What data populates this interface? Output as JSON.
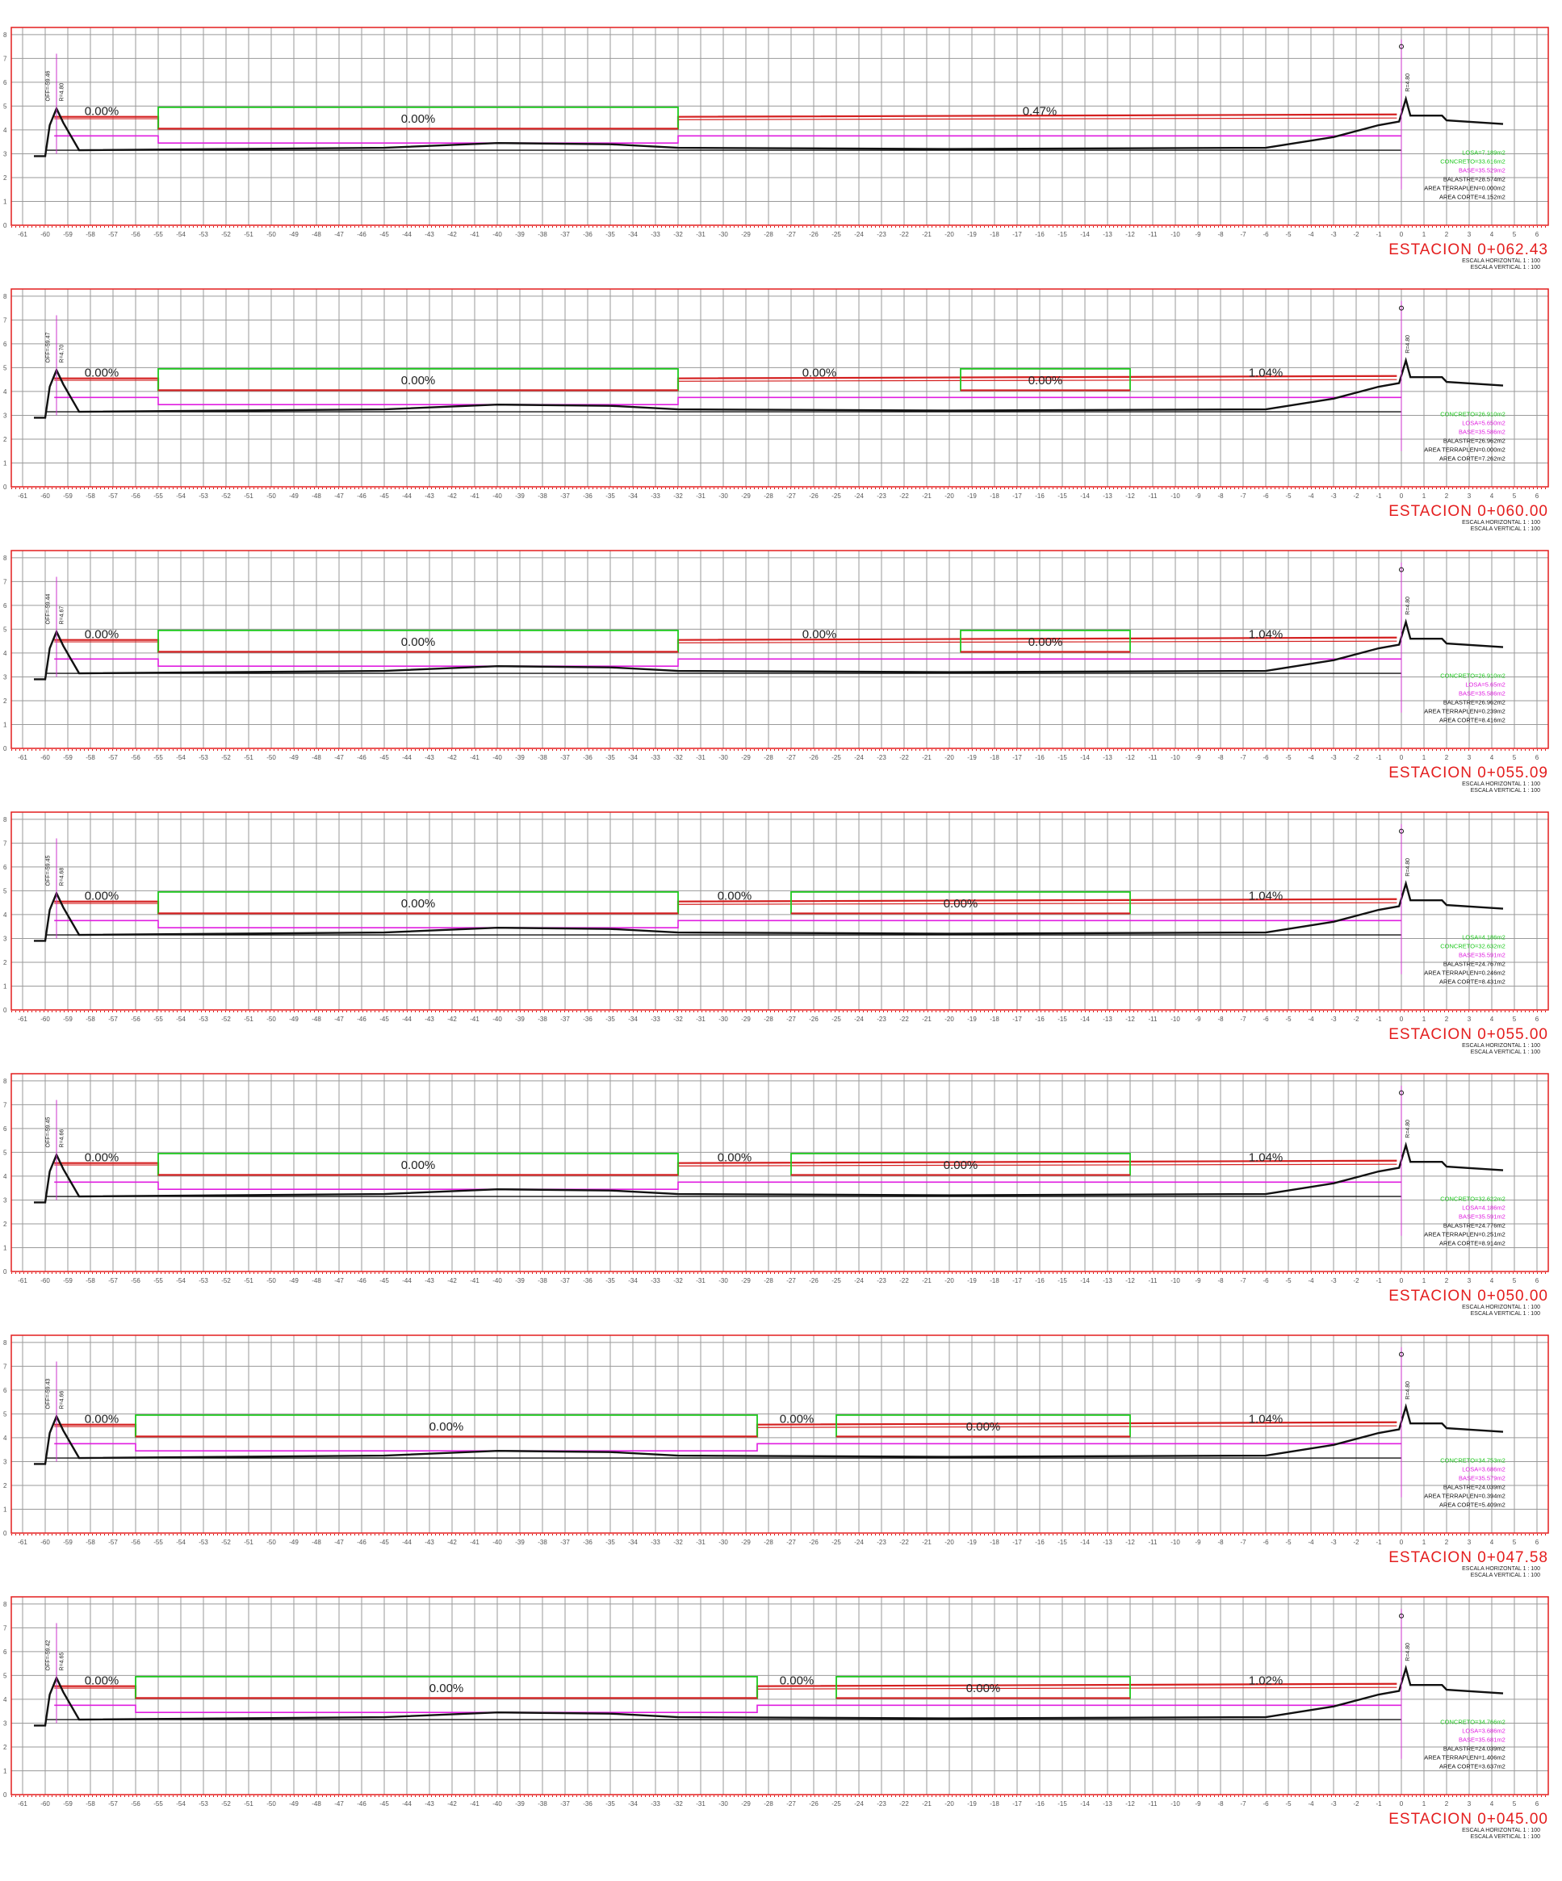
{
  "colors": {
    "frame": "#e41e1e",
    "grid": "#9a9a9a",
    "concrete": "#1ec81e",
    "slab": "#d42020",
    "base": "#e01ee0",
    "terrain": "#111111",
    "axis": "#cc33cc"
  },
  "y_ticks": [
    "0",
    "1",
    "2",
    "3",
    "4",
    "5",
    "6",
    "7",
    "8"
  ],
  "x_ticks": [
    "-61",
    "-60",
    "-59",
    "-58",
    "-57",
    "-56",
    "-55",
    "-54",
    "-53",
    "-52",
    "-51",
    "-50",
    "-49",
    "-48",
    "-47",
    "-46",
    "-45",
    "-44",
    "-43",
    "-42",
    "-41",
    "-40",
    "-39",
    "-38",
    "-37",
    "-36",
    "-35",
    "-34",
    "-33",
    "-32",
    "-31",
    "-30",
    "-29",
    "-28",
    "-27",
    "-26",
    "-25",
    "-24",
    "-23",
    "-22",
    "-21",
    "-20",
    "-19",
    "-18",
    "-17",
    "-16",
    "-15",
    "-14",
    "-13",
    "-12",
    "-11",
    "-10",
    "-9",
    "-8",
    "-7",
    "-6",
    "-5",
    "-4",
    "-3",
    "-2",
    "-1",
    "0",
    "1",
    "2",
    "3",
    "4",
    "5",
    "6"
  ],
  "scale_h": "ESCALA HORIZONTAL 1 : 100",
  "scale_v": "ESCALA VERTICAL 1 : 100",
  "sections": [
    {
      "station": "ESTACION  0+062.43",
      "off_label": "OFF=-59.46",
      "r_label": "R=4.80",
      "cl_label": "R=4.80",
      "slopes": [
        "0.00%",
        "0.00%",
        "0.47%"
      ],
      "panels": [
        [
          -55,
          -32
        ]
      ],
      "areas": [
        {
          "text": "LOSA=7.189m2",
          "color": "#1ec81e"
        },
        {
          "text": "CONCRETO=33.616m2",
          "color": "#1ec81e"
        },
        {
          "text": "BASE=35.529m2",
          "color": "#e01ee0"
        },
        {
          "text": "BALASTRE=28.574m2",
          "color": "#111111"
        },
        {
          "text": "AREA TERRAPLEN=0.000m2",
          "color": "#111111"
        },
        {
          "text": "AREA CORTE=4.152m2",
          "color": "#111111"
        }
      ]
    },
    {
      "station": "ESTACION  0+060.00",
      "off_label": "OFF=-59.47",
      "r_label": "R=4.70",
      "cl_label": "R=4.80",
      "slopes": [
        "0.00%",
        "0.00%",
        "0.00%",
        "0.00%",
        "1.04%"
      ],
      "panels": [
        [
          -55,
          -32
        ],
        [
          -19.5,
          -12
        ]
      ],
      "areas": [
        {
          "text": "CONCRETO=26.910m2",
          "color": "#1ec81e"
        },
        {
          "text": "LOSA=5.650m2",
          "color": "#e01ee0"
        },
        {
          "text": "BASE=35.586m2",
          "color": "#e01ee0"
        },
        {
          "text": "BALASTRE=26.962m2",
          "color": "#111111"
        },
        {
          "text": "AREA TERRAPLEN=0.000m2",
          "color": "#111111"
        },
        {
          "text": "AREA CORTE=7.262m2",
          "color": "#111111"
        }
      ]
    },
    {
      "station": "ESTACION  0+055.09",
      "off_label": "OFF=-59.44",
      "r_label": "R=4.67",
      "cl_label": "R=4.80",
      "slopes": [
        "0.00%",
        "0.00%",
        "0.00%",
        "0.00%",
        "1.04%"
      ],
      "panels": [
        [
          -55,
          -32
        ],
        [
          -19.5,
          -12
        ]
      ],
      "areas": [
        {
          "text": "CONCRETO=26.910m2",
          "color": "#1ec81e"
        },
        {
          "text": "LOSA=5.65m2",
          "color": "#e01ee0"
        },
        {
          "text": "BASE=35.586m2",
          "color": "#e01ee0"
        },
        {
          "text": "BALASTRE=26.962m2",
          "color": "#111111"
        },
        {
          "text": "AREA TERRAPLEN=0.239m2",
          "color": "#111111"
        },
        {
          "text": "AREA CORTE=8.416m2",
          "color": "#111111"
        }
      ]
    },
    {
      "station": "ESTACION  0+055.00",
      "off_label": "OFF=-59.45",
      "r_label": "R=4.68",
      "cl_label": "R=4.80",
      "slopes": [
        "0.00%",
        "0.00%",
        "0.00%",
        "0.00%",
        "1.04%"
      ],
      "panels": [
        [
          -55,
          -32
        ],
        [
          -27,
          -12
        ]
      ],
      "areas": [
        {
          "text": "LOSA=4.186m2",
          "color": "#1ec81e"
        },
        {
          "text": "CONCRETO=32.632m2",
          "color": "#1ec81e"
        },
        {
          "text": "BASE=35.591m2",
          "color": "#e01ee0"
        },
        {
          "text": "BALASTRE=24.767m2",
          "color": "#111111"
        },
        {
          "text": "AREA TERRAPLEN=0.246m2",
          "color": "#111111"
        },
        {
          "text": "AREA CORTE=8.431m2",
          "color": "#111111"
        }
      ]
    },
    {
      "station": "ESTACION  0+050.00",
      "off_label": "OFF=-59.45",
      "r_label": "R=4.66",
      "cl_label": "R=4.80",
      "slopes": [
        "0.00%",
        "0.00%",
        "0.00%",
        "0.00%",
        "1.04%"
      ],
      "panels": [
        [
          -55,
          -32
        ],
        [
          -27,
          -12
        ]
      ],
      "areas": [
        {
          "text": "CONCRETO=32.622m2",
          "color": "#1ec81e"
        },
        {
          "text": "LOSA=4.186m2",
          "color": "#e01ee0"
        },
        {
          "text": "BASE=35.591m2",
          "color": "#e01ee0"
        },
        {
          "text": "BALASTRE=24.776m2",
          "color": "#111111"
        },
        {
          "text": "AREA TERRAPLEN=0.251m2",
          "color": "#111111"
        },
        {
          "text": "AREA CORTE=8.914m2",
          "color": "#111111"
        }
      ]
    },
    {
      "station": "ESTACION  0+047.58",
      "off_label": "OFF=-59.43",
      "r_label": "R=4.66",
      "cl_label": "R=4.80",
      "slopes": [
        "0.00%",
        "0.00%",
        "0.00%",
        "0.00%",
        "1.04%"
      ],
      "panels": [
        [
          -56,
          -28.5
        ],
        [
          -25,
          -12
        ]
      ],
      "areas": [
        {
          "text": "CONCRETO=34.753m2",
          "color": "#1ec81e"
        },
        {
          "text": "LOSA=3.686m2",
          "color": "#e01ee0"
        },
        {
          "text": "BASE=35.579m2",
          "color": "#e01ee0"
        },
        {
          "text": "BALASTRE=24.039m2",
          "color": "#111111"
        },
        {
          "text": "AREA TERRAPLEN=0.394m2",
          "color": "#111111"
        },
        {
          "text": "AREA CORTE=5.409m2",
          "color": "#111111"
        }
      ]
    },
    {
      "station": "ESTACION  0+045.00",
      "off_label": "OFF=-59.42",
      "r_label": "R=4.65",
      "cl_label": "R=4.80",
      "slopes": [
        "0.00%",
        "0.00%",
        "0.00%",
        "0.00%",
        "1.02%"
      ],
      "panels": [
        [
          -56,
          -28.5
        ],
        [
          -25,
          -12
        ]
      ],
      "areas": [
        {
          "text": "CONCRETO=34.766m2",
          "color": "#1ec81e"
        },
        {
          "text": "LOSA=3.686m2",
          "color": "#e01ee0"
        },
        {
          "text": "BASE=35.681m2",
          "color": "#e01ee0"
        },
        {
          "text": "BALASTRE=24.039m2",
          "color": "#111111"
        },
        {
          "text": "AREA TERRAPLEN=1.406m2",
          "color": "#111111"
        },
        {
          "text": "AREA CORTE=3.637m2",
          "color": "#111111"
        }
      ]
    }
  ]
}
